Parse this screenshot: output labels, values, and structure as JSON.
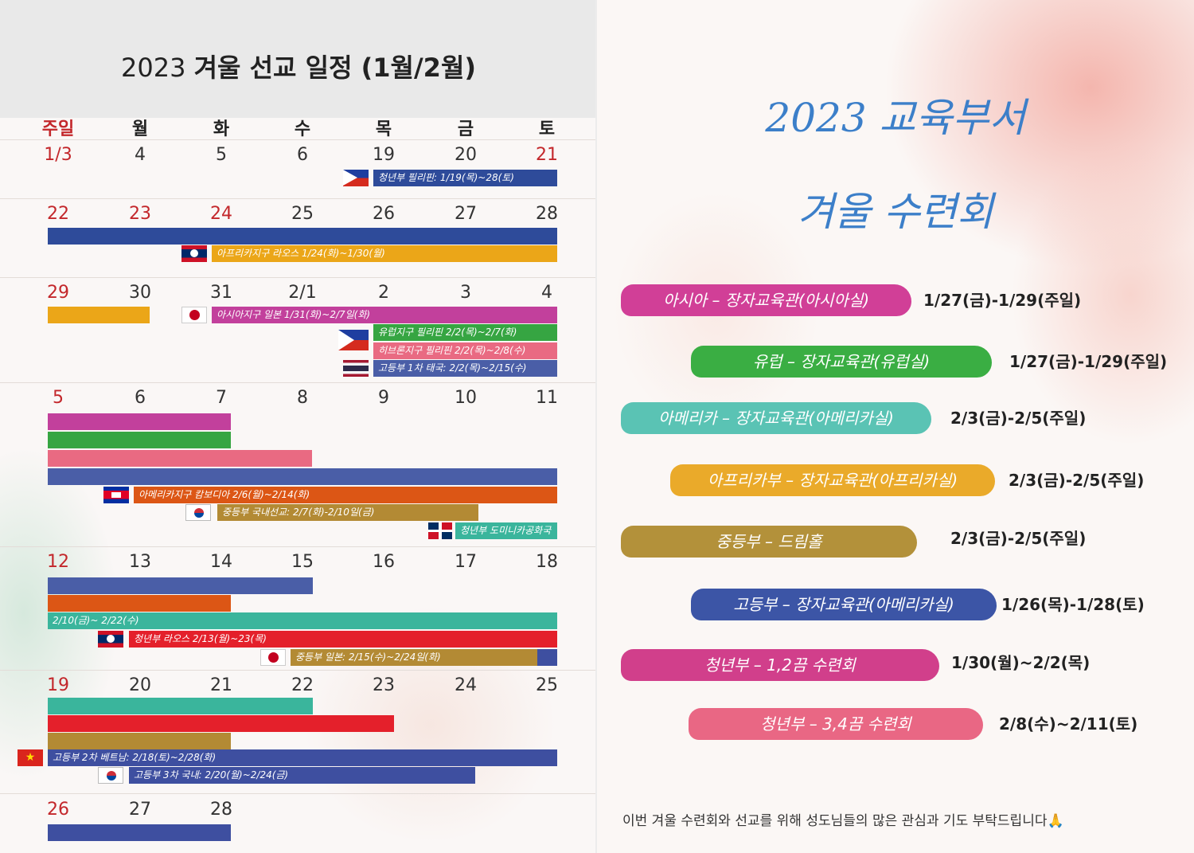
{
  "calendar": {
    "title_year": "2023",
    "title_rest": "겨울 선교 일정 (1월/2월)",
    "weekdays": [
      "주일",
      "월",
      "화",
      "수",
      "목",
      "금",
      "토"
    ],
    "weeks": [
      [
        "1/3",
        "4",
        "5",
        "6",
        "19",
        "20",
        "21"
      ],
      [
        "22",
        "23",
        "24",
        "25",
        "26",
        "27",
        "28"
      ],
      [
        "29",
        "30",
        "31",
        "2/1",
        "2",
        "3",
        "4"
      ],
      [
        "5",
        "6",
        "7",
        "8",
        "9",
        "10",
        "11"
      ],
      [
        "12",
        "13",
        "14",
        "15",
        "16",
        "17",
        "18"
      ],
      [
        "19",
        "20",
        "21",
        "22",
        "23",
        "24",
        "25"
      ],
      [
        "26",
        "27",
        "28"
      ]
    ],
    "events": [
      "청년부 필리핀: 1/19(목)~28(토)",
      "아프리카지구 라오스 1/24(화)~1/30(월)",
      "아시아지구 일본 1/31(화)~2/7일(화)",
      "유럽지구 필리핀 2/2(목)~2/7(화)",
      "히브론지구 필리핀 2/2(목)~2/8(수)",
      "고등부 1차 태국: 2/2(목)~2/15(수)",
      "아메리카지구 캄보디아 2/6(월)~2/14(화)",
      "중등부 국내선교: 2/7(화)-2/10일(금)",
      "청년부 도미니카공화국",
      "2/10(금)~ 2/22(수)",
      "청년부 라오스 2/13(월)~23(목)",
      "중등부 일본: 2/15(수)~2/24일(화)",
      "고등부 2차 베트남: 2/18(토)~2/28(화)",
      "고등부 3차 국내: 2/20(월)~2/24(금)"
    ],
    "colors": {
      "blue": "#2e4b9a",
      "navy": "#3e4fa0",
      "yellow": "#eba618",
      "magenta": "#c2409c",
      "green": "#36a542",
      "pink": "#e96a82",
      "slate": "#4a5ea7",
      "orange": "#dc5615",
      "olive": "#b38a34",
      "teal": "#3ab59c",
      "red": "#e4202b"
    }
  },
  "retreat": {
    "title_line1": "2023 교육부서",
    "title_line2": "겨울 수련회",
    "items": [
      {
        "label": "아시아 – 장자교육관(아시아실)",
        "date": "1/27(금)-1/29(주일)",
        "color": "#d13f97"
      },
      {
        "label": "유럽 – 장자교육관(유럽실)",
        "date": "1/27(금)-1/29(주일)",
        "color": "#3aae43"
      },
      {
        "label": "아메리카 – 장자교육관(아메리카실)",
        "date": "2/3(금)-2/5(주일)",
        "color": "#5ac3b4"
      },
      {
        "label": "아프리카부 – 장자교육관(아프리카실)",
        "date": "2/3(금)-2/5(주일)",
        "color": "#eaaa2a"
      },
      {
        "label": "중등부 – 드림홀",
        "date": "2/3(금)-2/5(주일)",
        "color": "#b3913a"
      },
      {
        "label": "고등부 – 장자교육관(아메리카실)",
        "date": "1/26(목)-1/28(토)",
        "color": "#3c55a6"
      },
      {
        "label": "청년부 – 1,2끔 수련회",
        "date": "1/30(월)~2/2(목)",
        "color": "#d13f8b"
      },
      {
        "label": "청년부 – 3,4끔 수련회",
        "date": "2/8(수)~2/11(토)",
        "color": "#e96784"
      }
    ],
    "footer": "이번 겨울 수련회와 선교를 위해 성도님들의 많은 관심과 기도 부탁드립니다🙏"
  }
}
